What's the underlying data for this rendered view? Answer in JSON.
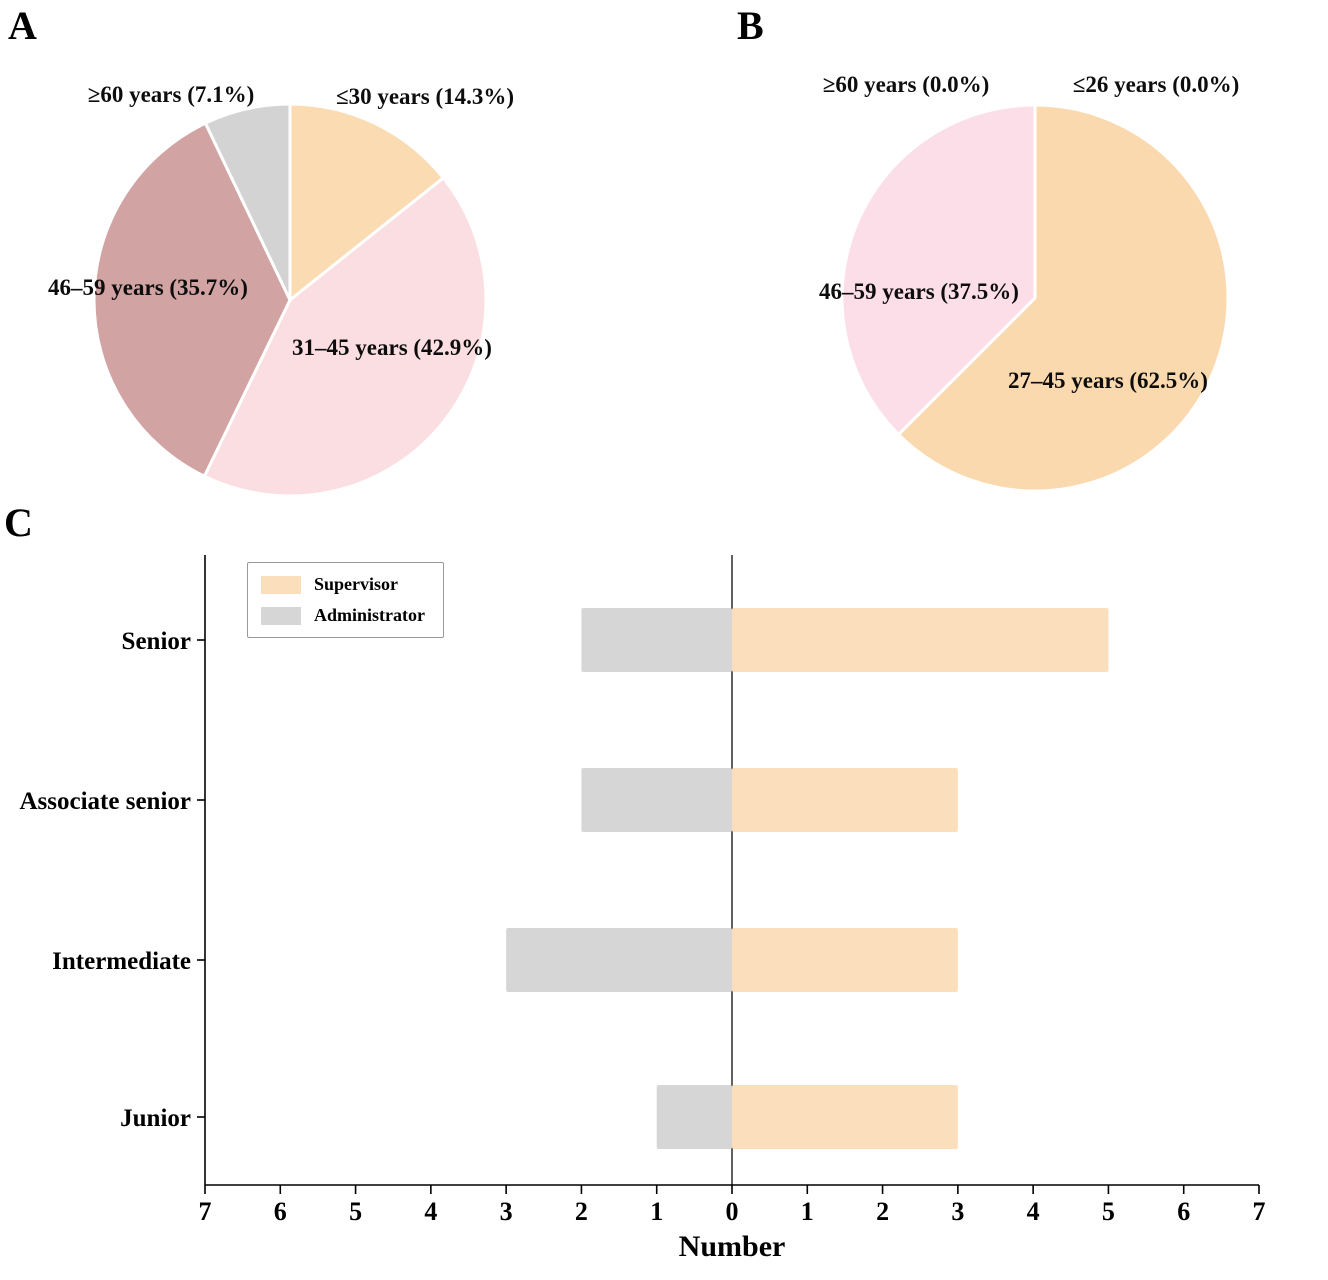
{
  "panels": {
    "a": "A",
    "b": "B",
    "c": "C"
  },
  "chart_data": [
    {
      "type": "pie",
      "panel": "A",
      "start_angle_deg": 0,
      "direction": "clockwise",
      "slices": [
        {
          "label": "≤30 years (14.3%)",
          "value": 14.3,
          "color": "#FBDCB2"
        },
        {
          "label": "31–45 years (42.9%)",
          "value": 42.9,
          "color": "#FBDEE2"
        },
        {
          "label": "46–59 years (35.7%)",
          "value": 35.7,
          "color": "#D2A3A3"
        },
        {
          "label": "≥60 years (7.1%)",
          "value": 7.1,
          "color": "#D3D3D3"
        }
      ]
    },
    {
      "type": "pie",
      "panel": "B",
      "start_angle_deg": 0,
      "direction": "clockwise",
      "slices": [
        {
          "label": "≤26 years (0.0%)",
          "value": 0.0,
          "color": "#FBDCB2"
        },
        {
          "label": "27–45 years (62.5%)",
          "value": 62.5,
          "color": "#FBD9AE"
        },
        {
          "label": "46–59 years (37.5%)",
          "value": 37.5,
          "color": "#FCDEE8"
        },
        {
          "label": "≥60 years (0.0%)",
          "value": 0.0,
          "color": "#D3D3D3"
        }
      ]
    },
    {
      "type": "bar",
      "panel": "C",
      "orientation": "horizontal-diverging",
      "categories": [
        "Senior",
        "Associate senior",
        "Intermediate",
        "Junior"
      ],
      "series": [
        {
          "name": "Supervisor",
          "side": "right",
          "color": "#FBDEBB",
          "values": [
            5,
            3,
            3,
            3
          ]
        },
        {
          "name": "Administrator",
          "side": "left",
          "color": "#D6D6D6",
          "values": [
            2,
            2,
            3,
            1
          ]
        }
      ],
      "x_ticks": [
        "7",
        "6",
        "5",
        "4",
        "3",
        "2",
        "1",
        "0",
        "1",
        "2",
        "3",
        "4",
        "5",
        "6",
        "7"
      ],
      "xlim": [
        -7,
        7
      ],
      "xlabel": "Number",
      "legend_position": "top-left",
      "grid": false
    }
  ]
}
